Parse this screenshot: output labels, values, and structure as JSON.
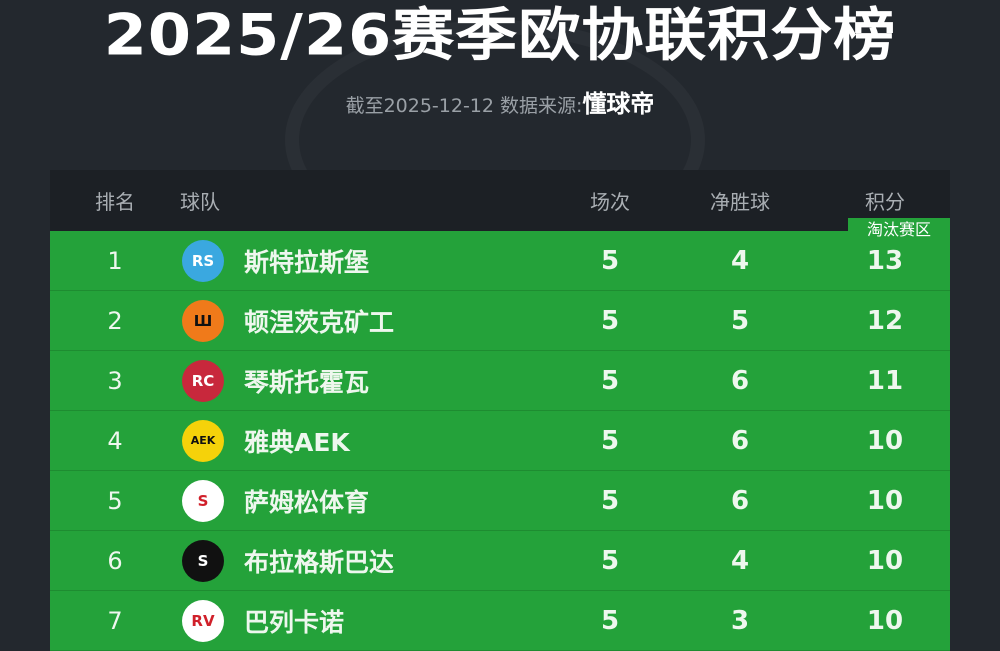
{
  "title": "2025/26赛季欧协联积分榜",
  "subtitle": {
    "date_prefix": "截至2025-12-12 数据来源:",
    "source": "懂球帝"
  },
  "table": {
    "headers": {
      "rank": "排名",
      "team": "球队",
      "played": "场次",
      "goal_diff": "净胜球",
      "points": "积分"
    },
    "zone_badge": "淘汰赛区",
    "zone_color": "#24a23a",
    "rows": [
      {
        "rank": "1",
        "team": "斯特拉斯堡",
        "played": "5",
        "goal_diff": "4",
        "points": "13",
        "logo": "RS",
        "logo_bg": "#3aa8e0",
        "logo_fg": "#fff"
      },
      {
        "rank": "2",
        "team": "顿涅茨克矿工",
        "played": "5",
        "goal_diff": "5",
        "points": "12",
        "logo": "Ш",
        "logo_bg": "#f07a1a",
        "logo_fg": "#111"
      },
      {
        "rank": "3",
        "team": "琴斯托霍瓦",
        "played": "5",
        "goal_diff": "6",
        "points": "11",
        "logo": "RC",
        "logo_bg": "#c8283c",
        "logo_fg": "#fff"
      },
      {
        "rank": "4",
        "team": "雅典AEK",
        "played": "5",
        "goal_diff": "6",
        "points": "10",
        "logo": "AEK",
        "logo_bg": "#f5d20a",
        "logo_fg": "#111"
      },
      {
        "rank": "5",
        "team": "萨姆松体育",
        "played": "5",
        "goal_diff": "6",
        "points": "10",
        "logo": "S",
        "logo_bg": "#fff",
        "logo_fg": "#d0202a"
      },
      {
        "rank": "6",
        "team": "布拉格斯巴达",
        "played": "5",
        "goal_diff": "4",
        "points": "10",
        "logo": "S",
        "logo_bg": "#111",
        "logo_fg": "#fff"
      },
      {
        "rank": "7",
        "team": "巴列卡诺",
        "played": "5",
        "goal_diff": "3",
        "points": "10",
        "logo": "RV",
        "logo_bg": "#fff",
        "logo_fg": "#d0202a"
      }
    ]
  }
}
